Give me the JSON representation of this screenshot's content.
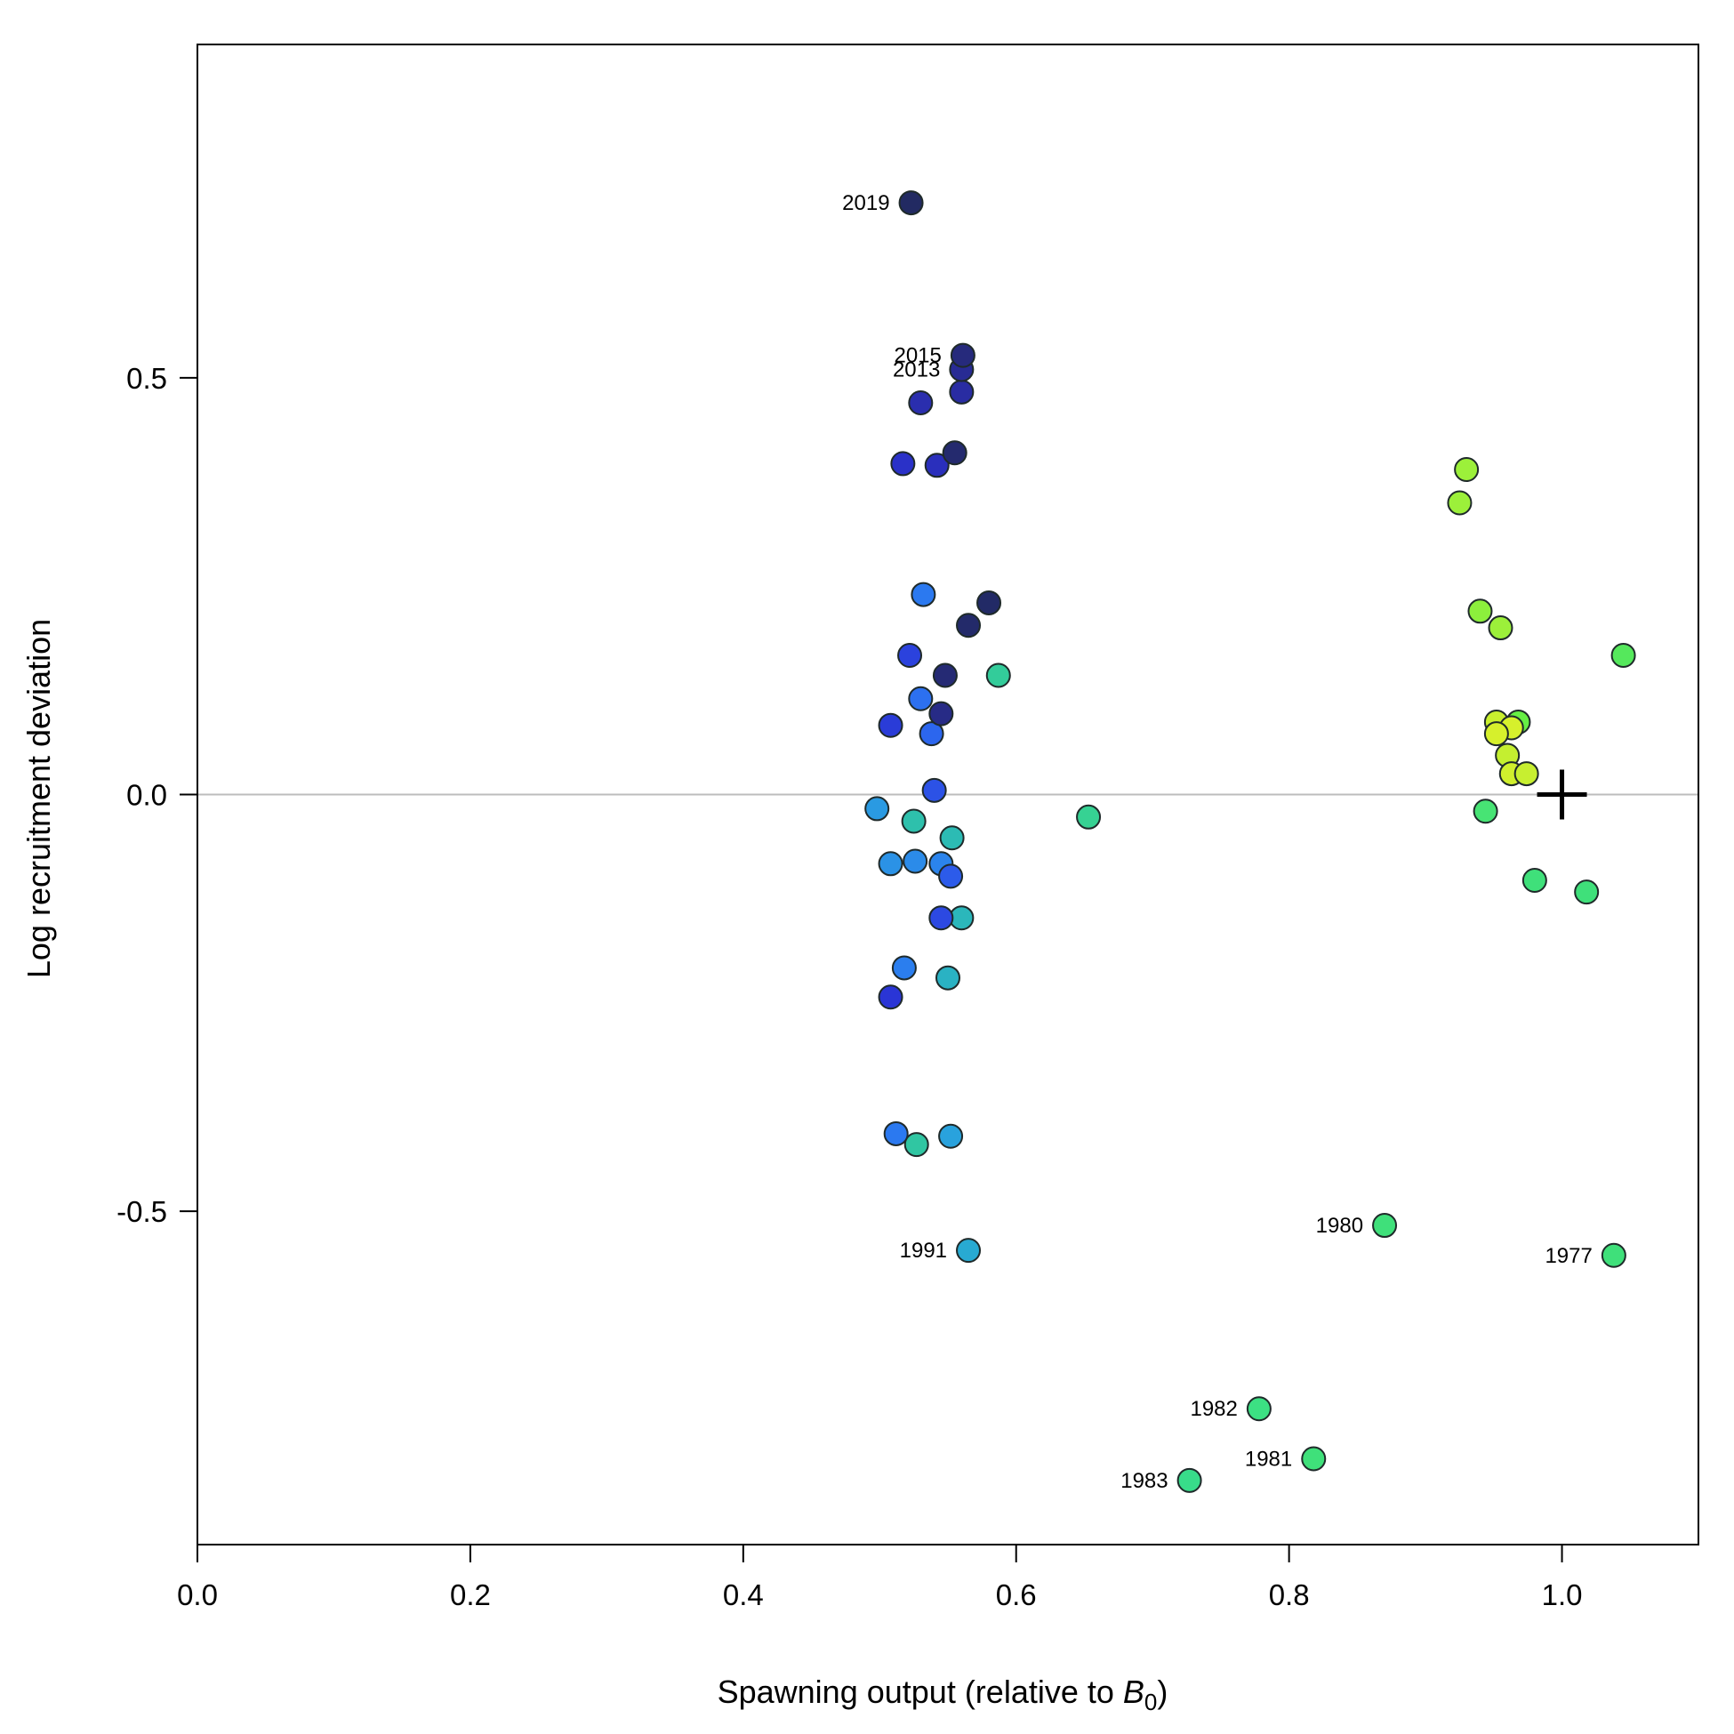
{
  "chart_data": {
    "type": "scatter",
    "xlabel": "Spawning output (relative to ",
    "xlabel_symbol": "B",
    "xlabel_subscript": "0",
    "xlabel_close": ")",
    "ylabel": "Log recruitment deviation",
    "xlim": [
      0.0,
      1.1
    ],
    "ylim": [
      -0.9,
      0.9
    ],
    "x_ticks": [
      0.0,
      0.2,
      0.4,
      0.6,
      0.8,
      1.0
    ],
    "x_tick_labels": [
      "0.0",
      "0.2",
      "0.4",
      "0.6",
      "0.8",
      "1.0"
    ],
    "y_ticks": [
      -0.5,
      0.0,
      0.5
    ],
    "y_tick_labels": [
      "-0.5",
      "0.0",
      "0.5"
    ],
    "reference_line_y": 0.0,
    "reference_point": {
      "x": 1.0,
      "y": 0.0,
      "marker": "+"
    },
    "grid": false,
    "point_colors": {
      "early": "#3fe07a",
      "mid_green": "#66ef44",
      "yellow_green": "#9cf03a",
      "yellow": "#d6f02c",
      "teal": "#2ec6a6",
      "sky": "#27a6dc",
      "blue": "#2b79f0",
      "royal": "#2a35d6",
      "navy": "#222a6e"
    },
    "points": [
      {
        "x": 1.038,
        "y": -0.553,
        "color": "#3fe07a",
        "label": "1977"
      },
      {
        "x": 0.98,
        "y": -0.103,
        "color": "#3fe07a",
        "label": ""
      },
      {
        "x": 1.018,
        "y": -0.117,
        "color": "#3fe07a",
        "label": ""
      },
      {
        "x": 0.87,
        "y": -0.517,
        "color": "#3fe07a",
        "label": "1980"
      },
      {
        "x": 0.818,
        "y": -0.797,
        "color": "#3fe07a",
        "label": "1981"
      },
      {
        "x": 0.778,
        "y": -0.737,
        "color": "#3ce083",
        "label": "1982"
      },
      {
        "x": 0.727,
        "y": -0.823,
        "color": "#38dc8a",
        "label": "1983"
      },
      {
        "x": 0.944,
        "y": -0.02,
        "color": "#47e474",
        "label": ""
      },
      {
        "x": 1.045,
        "y": 0.167,
        "color": "#55e85c",
        "label": ""
      },
      {
        "x": 0.968,
        "y": 0.087,
        "color": "#66ef44",
        "label": ""
      },
      {
        "x": 0.93,
        "y": 0.39,
        "color": "#9cf03a",
        "label": ""
      },
      {
        "x": 0.925,
        "y": 0.35,
        "color": "#9cf03a",
        "label": ""
      },
      {
        "x": 0.94,
        "y": 0.22,
        "color": "#8cef3c",
        "label": ""
      },
      {
        "x": 0.955,
        "y": 0.2,
        "color": "#9cf03a",
        "label": ""
      },
      {
        "x": 0.952,
        "y": 0.087,
        "color": "#c9f02e",
        "label": ""
      },
      {
        "x": 0.963,
        "y": 0.08,
        "color": "#d6f02c",
        "label": ""
      },
      {
        "x": 0.952,
        "y": 0.073,
        "color": "#d6f02c",
        "label": ""
      },
      {
        "x": 0.96,
        "y": 0.047,
        "color": "#c4ef30",
        "label": ""
      },
      {
        "x": 0.963,
        "y": 0.025,
        "color": "#d0ef2d",
        "label": ""
      },
      {
        "x": 0.974,
        "y": 0.025,
        "color": "#c7ef30",
        "label": ""
      },
      {
        "x": 0.653,
        "y": -0.027,
        "color": "#36d293",
        "label": ""
      },
      {
        "x": 0.587,
        "y": 0.143,
        "color": "#33cc9a",
        "label": ""
      },
      {
        "x": 0.527,
        "y": -0.42,
        "color": "#30c6a2",
        "label": ""
      },
      {
        "x": 0.525,
        "y": -0.032,
        "color": "#2ec0ac",
        "label": ""
      },
      {
        "x": 0.553,
        "y": -0.052,
        "color": "#2cbbb4",
        "label": ""
      },
      {
        "x": 0.56,
        "y": -0.148,
        "color": "#2bb7bb",
        "label": ""
      },
      {
        "x": 0.55,
        "y": -0.22,
        "color": "#2ab2c3",
        "label": ""
      },
      {
        "x": 0.565,
        "y": -0.547,
        "color": "#28aad2",
        "label": "1991"
      },
      {
        "x": 0.552,
        "y": -0.41,
        "color": "#29a2dd",
        "label": ""
      },
      {
        "x": 0.498,
        "y": -0.017,
        "color": "#2a9ae2",
        "label": ""
      },
      {
        "x": 0.508,
        "y": -0.083,
        "color": "#2b92e6",
        "label": ""
      },
      {
        "x": 0.526,
        "y": -0.08,
        "color": "#2b8be9",
        "label": ""
      },
      {
        "x": 0.545,
        "y": -0.083,
        "color": "#2b84ec",
        "label": ""
      },
      {
        "x": 0.518,
        "y": -0.208,
        "color": "#2b7eee",
        "label": ""
      },
      {
        "x": 0.512,
        "y": -0.407,
        "color": "#2b79f0",
        "label": ""
      },
      {
        "x": 0.532,
        "y": 0.24,
        "color": "#2b79f0",
        "label": ""
      },
      {
        "x": 0.53,
        "y": 0.115,
        "color": "#2c70f0",
        "label": ""
      },
      {
        "x": 0.538,
        "y": 0.073,
        "color": "#2c66ee",
        "label": ""
      },
      {
        "x": 0.552,
        "y": -0.098,
        "color": "#2c5bea",
        "label": ""
      },
      {
        "x": 0.54,
        "y": 0.005,
        "color": "#2c52e6",
        "label": ""
      },
      {
        "x": 0.545,
        "y": -0.148,
        "color": "#2c49e2",
        "label": ""
      },
      {
        "x": 0.522,
        "y": 0.167,
        "color": "#2b42dd",
        "label": ""
      },
      {
        "x": 0.508,
        "y": 0.083,
        "color": "#2a3cd8",
        "label": ""
      },
      {
        "x": 0.508,
        "y": -0.243,
        "color": "#2a35d6",
        "label": ""
      },
      {
        "x": 0.517,
        "y": 0.397,
        "color": "#2a31c8",
        "label": ""
      },
      {
        "x": 0.542,
        "y": 0.395,
        "color": "#2a2fbc",
        "label": ""
      },
      {
        "x": 0.53,
        "y": 0.47,
        "color": "#2a2eae",
        "label": ""
      },
      {
        "x": 0.56,
        "y": 0.483,
        "color": "#292ca2",
        "label": ""
      },
      {
        "x": 0.56,
        "y": 0.51,
        "color": "#282b94",
        "label": "2013"
      },
      {
        "x": 0.545,
        "y": 0.097,
        "color": "#272b86",
        "label": ""
      },
      {
        "x": 0.561,
        "y": 0.527,
        "color": "#262a7c",
        "label": "2015"
      },
      {
        "x": 0.548,
        "y": 0.143,
        "color": "#252a74",
        "label": ""
      },
      {
        "x": 0.555,
        "y": 0.41,
        "color": "#242a6e",
        "label": ""
      },
      {
        "x": 0.565,
        "y": 0.203,
        "color": "#232a6a",
        "label": ""
      },
      {
        "x": 0.58,
        "y": 0.23,
        "color": "#222a66",
        "label": ""
      },
      {
        "x": 0.523,
        "y": 0.71,
        "color": "#222a62",
        "label": "2019"
      }
    ]
  }
}
